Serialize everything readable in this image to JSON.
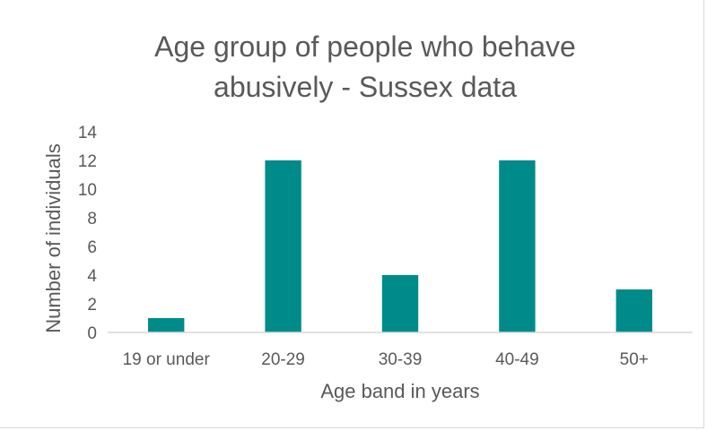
{
  "chart_data": {
    "type": "bar",
    "title_lines": [
      "Age group of people who behave",
      "abusively - Sussex data"
    ],
    "xlabel": "Age band in years",
    "ylabel": "Number of individuals",
    "categories": [
      "19 or under",
      "20-29",
      "30-39",
      "40-49",
      "50+"
    ],
    "values": [
      1,
      12,
      4,
      12,
      3
    ],
    "ylim": [
      0,
      14
    ],
    "yticks": [
      "0",
      "2",
      "4",
      "6",
      "8",
      "10",
      "12",
      "14"
    ],
    "grid": false,
    "legend": "none",
    "bar_color": "#008B8B",
    "axis_color": "#d9d9d9"
  }
}
